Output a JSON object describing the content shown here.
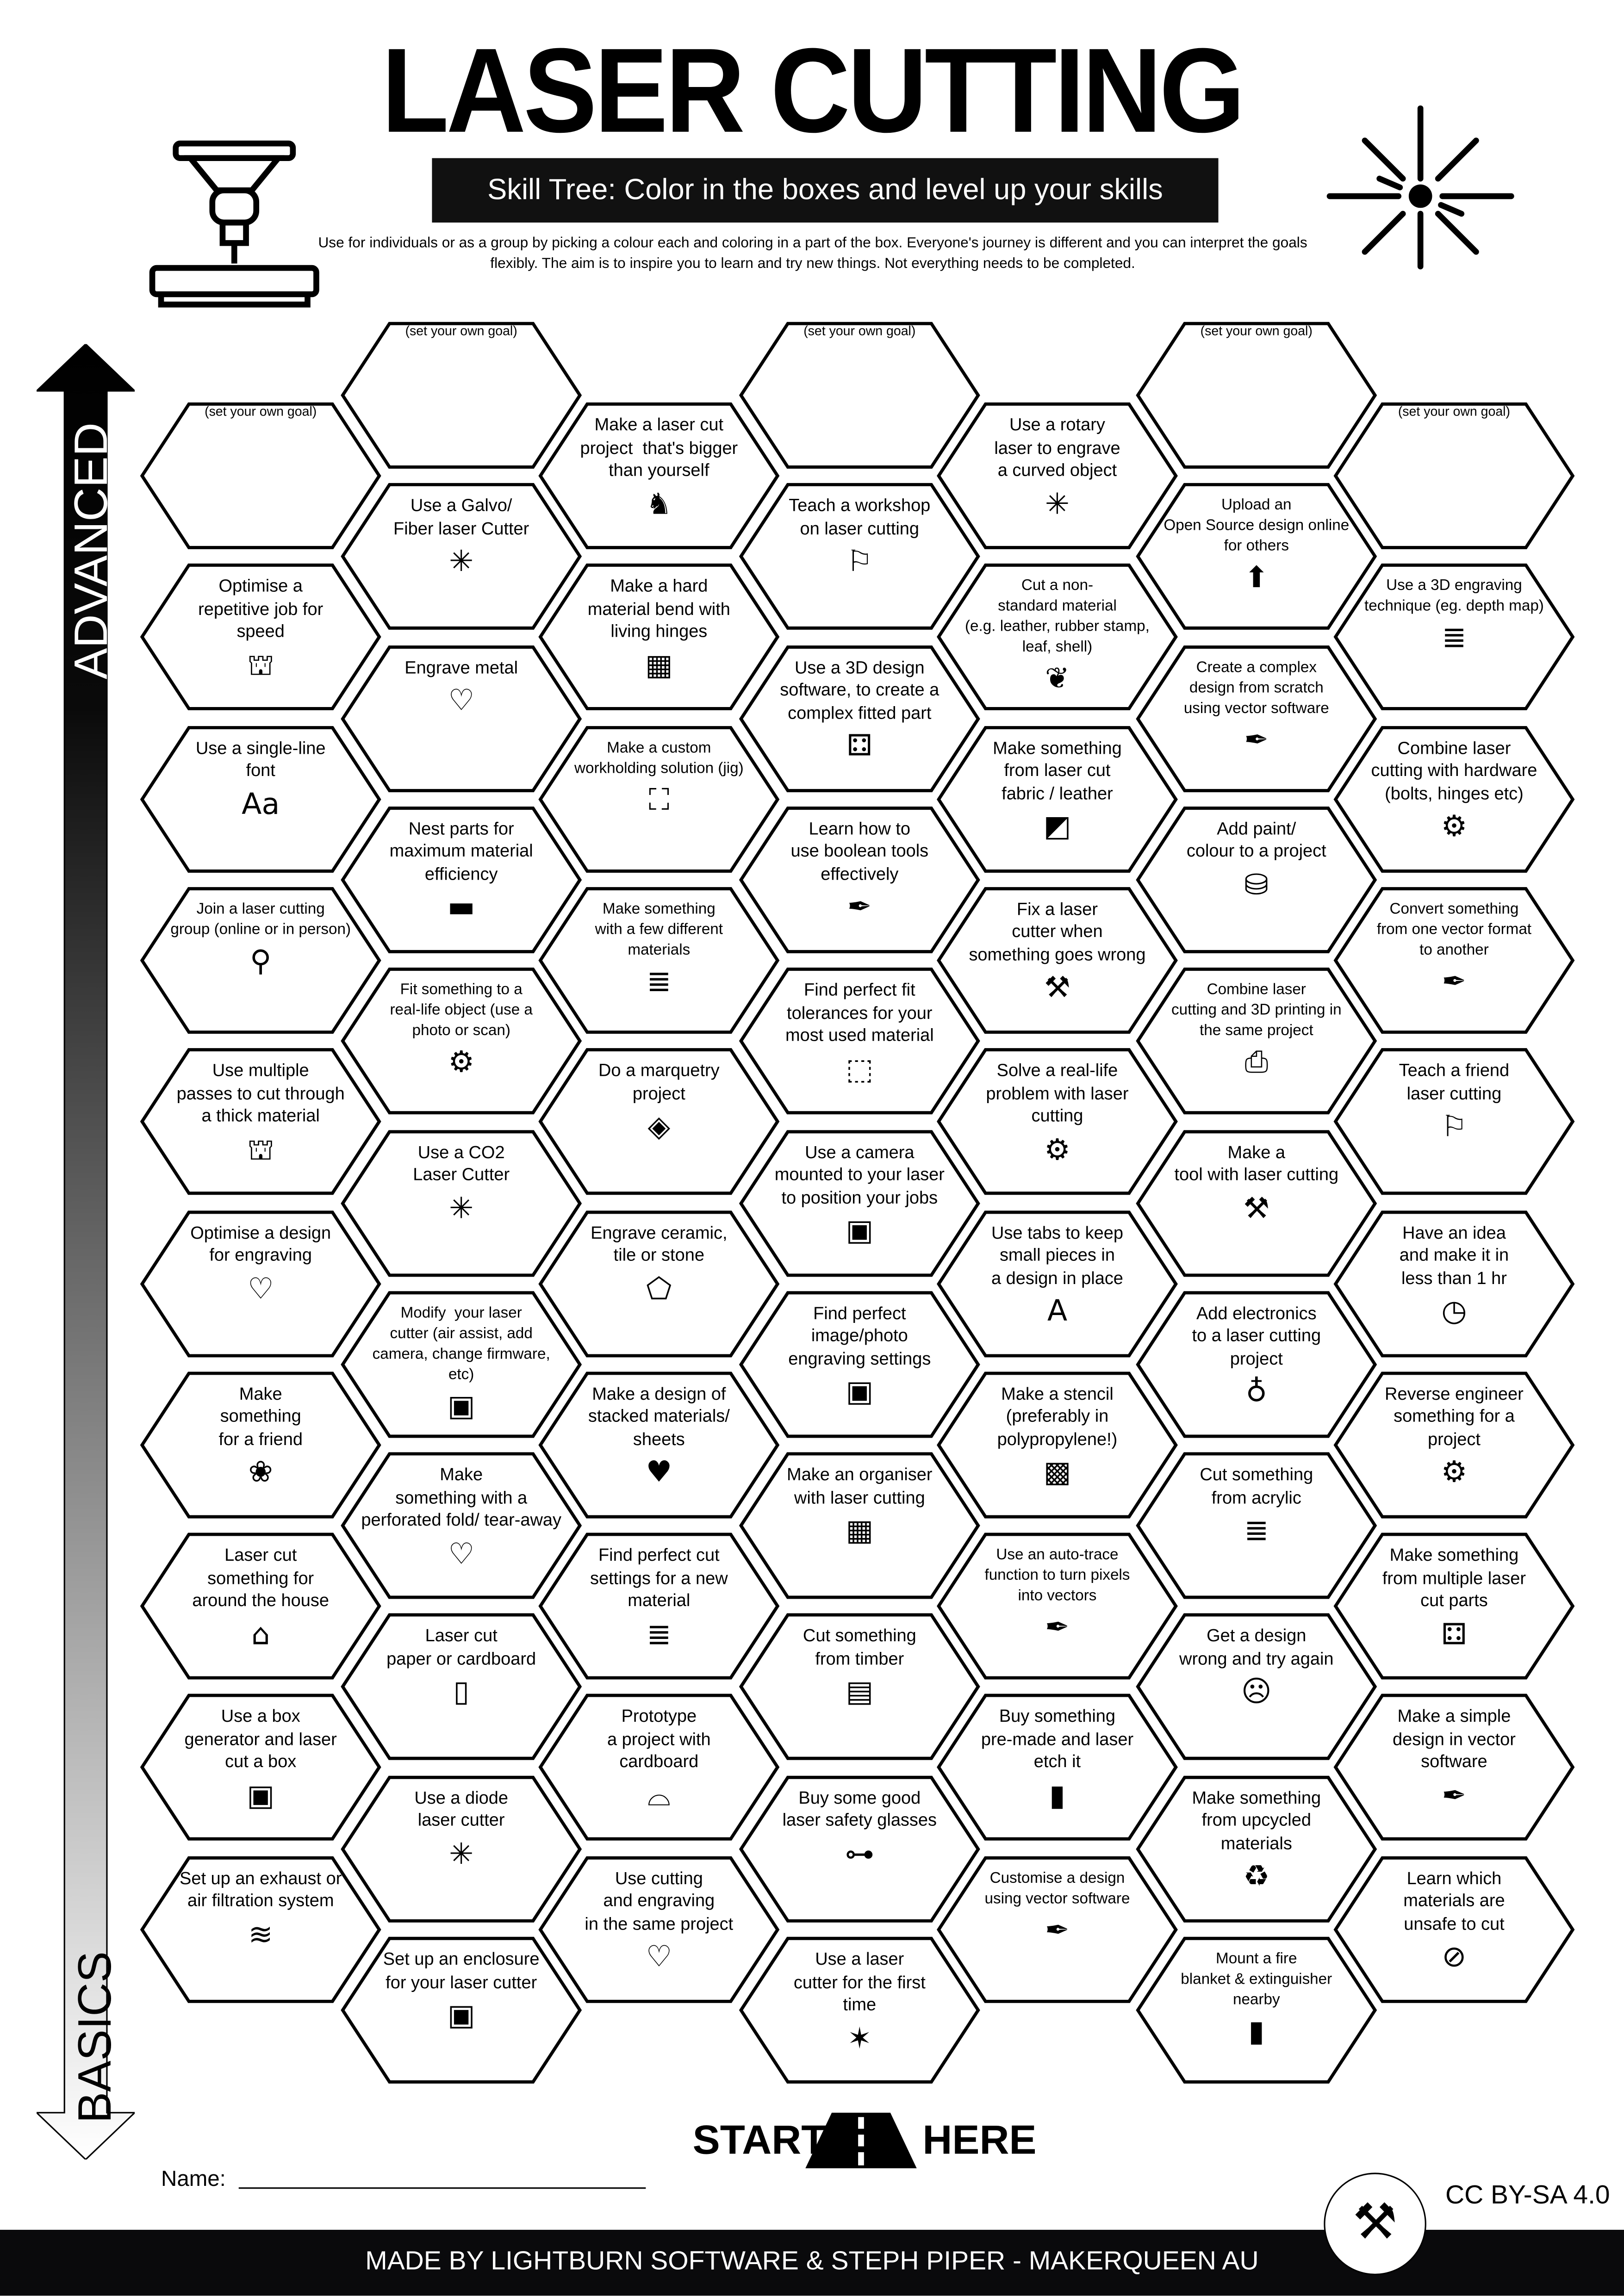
{
  "header": {
    "title": "LASER CUTTING",
    "subtitle": "Skill Tree:  Color in the boxes and level up your skills",
    "description": "Use for individuals or as a group by picking a colour each and coloring in a part of the box.  Everyone's journey is different and you can interpret the goals flexibly.  The aim is to inspire you to learn and try new things. Not everything needs to be completed.",
    "left_icon": "laser-machine-icon",
    "right_icon": "laser-burst-icon"
  },
  "axis": {
    "top_label": "ADVANCED",
    "bottom_label": "BASICS",
    "colors": [
      "#000000",
      "#ffffff"
    ]
  },
  "goal_label": "(set your own goal)",
  "columns": [
    {
      "items": [
        {
          "text": "",
          "goal": true
        },
        {
          "text": "Optimise a\nrepetitive job for\nspeed",
          "icon": "laser-machine"
        },
        {
          "text": "Use a single-line\nfont",
          "icon": "font"
        },
        {
          "text": "Join a laser cutting\ngroup (online or in person)",
          "icon": "location-pin",
          "small": true
        },
        {
          "text": "Use multiple\npasses to cut through\na thick material",
          "icon": "laser-machine"
        },
        {
          "text": "Optimise a design\nfor engraving",
          "icon": "heart-laser"
        },
        {
          "text": "Make\nsomething\nfor a friend",
          "icon": "gift-bow"
        },
        {
          "text": "Laser cut\nsomething for\naround the house",
          "icon": "house"
        },
        {
          "text": "Use a box\ngenerator and laser\ncut a box",
          "icon": "box"
        },
        {
          "text": "Set up an exhaust or\nair filtration system",
          "icon": "wind"
        }
      ]
    },
    {
      "items": [
        {
          "text": "",
          "goal": true
        },
        {
          "text": "Use a Galvo/\nFiber laser Cutter",
          "icon": "laser-burst"
        },
        {
          "text": "Engrave metal",
          "icon": "heart-laser"
        },
        {
          "text": "Nest parts for\nmaximum material\nefficiency",
          "icon": "nested-parts"
        },
        {
          "text": "Fit something to a\nreal-life object (use a\nphoto or scan)",
          "icon": "gear-hand",
          "small": true
        },
        {
          "text": "Use a CO2\nLaser Cutter",
          "icon": "laser-burst"
        },
        {
          "text": "Modify  your laser\ncutter (air assist, add\ncamera, change firmware,\netc)",
          "icon": "camera",
          "small": true
        },
        {
          "text": "Make\nsomething with a\nperforated fold/ tear-away",
          "icon": "perforated-heart"
        },
        {
          "text": "Laser cut\npaper or cardboard",
          "icon": "paper"
        },
        {
          "text": "Use a diode\nlaser cutter",
          "icon": "laser-burst"
        },
        {
          "text": "Set up an enclosure\nfor your laser cutter",
          "icon": "enclosure"
        }
      ]
    },
    {
      "items": [
        {
          "text": "Make a laser cut\nproject  that's bigger\nthan yourself",
          "icon": "elephant"
        },
        {
          "text": "Make a hard\nmaterial bend with\nliving hinges",
          "icon": "living-hinge"
        },
        {
          "text": "Make a custom\nworkholding solution (jig)",
          "icon": "jig-frame",
          "small": true
        },
        {
          "text": "Make something\nwith a few different\nmaterials",
          "icon": "layers",
          "small": true
        },
        {
          "text": "Do a marquetry\nproject",
          "icon": "marquetry"
        },
        {
          "text": "Engrave ceramic,\ntile or stone",
          "icon": "stone"
        },
        {
          "text": "Make a design of\nstacked materials/\nsheets",
          "icon": "stacked-heart"
        },
        {
          "text": "Find perfect cut\nsettings for a new\nmaterial",
          "icon": "layers"
        },
        {
          "text": "Prototype\na project with\ncardboard",
          "icon": "cardboard"
        },
        {
          "text": "Use cutting\nand engraving\nin the same project",
          "icon": "heart-laser"
        }
      ]
    },
    {
      "items": [
        {
          "text": "",
          "goal": true
        },
        {
          "text": "Teach a workshop\non laser cutting",
          "icon": "teacher"
        },
        {
          "text": "Use a 3D design\nsoftware, to create a\ncomplex fitted part",
          "icon": "fitted-part"
        },
        {
          "text": "Learn how to\nuse boolean tools\neffectively",
          "icon": "pen-tool"
        },
        {
          "text": "Find perfect fit\ntolerances for your\nmost used material",
          "icon": "cube-measure"
        },
        {
          "text": "Use a camera\nmounted to your laser\nto position your jobs",
          "icon": "camera"
        },
        {
          "text": "Find perfect\nimage/photo\nengraving settings",
          "icon": "portrait"
        },
        {
          "text": "Make an organiser\nwith laser cutting",
          "icon": "organiser"
        },
        {
          "text": "Cut something\nfrom timber",
          "icon": "timber"
        },
        {
          "text": "Buy some good\nlaser safety glasses",
          "icon": "safety-glasses"
        },
        {
          "text": "Use a laser\ncutter for the first\ntime",
          "icon": "party-popper"
        }
      ]
    },
    {
      "items": [
        {
          "text": "Use a rotary\nlaser to engrave\na curved object",
          "icon": "laser-burst"
        },
        {
          "text": "Cut a non-\nstandard material\n(e.g. leather, rubber stamp,\nleaf, shell)",
          "icon": "leaf",
          "small": true
        },
        {
          "text": "Make something\nfrom laser cut\nfabric / leather",
          "icon": "fabric"
        },
        {
          "text": "Fix a laser\ncutter when\nsomething goes wrong",
          "icon": "tools"
        },
        {
          "text": "Solve a real-life\nproblem with laser\ncutting",
          "icon": "gear-hand"
        },
        {
          "text": "Use tabs to keep\nsmall pieces in\na design in place",
          "icon": "letter-a"
        },
        {
          "text": "Make a stencil\n(preferably in\npolypropylene!)",
          "icon": "stencil"
        },
        {
          "text": "Use an auto-trace\nfunction to turn pixels\ninto vectors",
          "icon": "pen-tool",
          "small": true
        },
        {
          "text": "Buy something\npre-made and laser\netch it",
          "icon": "knife-board"
        },
        {
          "text": "Customise a design\nusing vector software",
          "icon": "pen-tool",
          "small": true
        }
      ]
    },
    {
      "items": [
        {
          "text": "",
          "goal": true
        },
        {
          "text": "Upload an\nOpen Source design online\nfor others",
          "icon": "upload",
          "small": true
        },
        {
          "text": "Create a complex\ndesign from scratch\nusing vector software",
          "icon": "pen-tool",
          "small": true
        },
        {
          "text": "Add paint/\ncolour to a project",
          "icon": "paint-can"
        },
        {
          "text": "Combine laser\ncutting and 3D printing in\nthe same project",
          "icon": "printer-laser",
          "small": true
        },
        {
          "text": "Make a\ntool with laser cutting",
          "icon": "tools"
        },
        {
          "text": "Add electronics\nto a laser cutting\nproject",
          "icon": "led"
        },
        {
          "text": "Cut something\nfrom acrylic",
          "icon": "layers"
        },
        {
          "text": "Get a design\nwrong and try again",
          "icon": "facepalm"
        },
        {
          "text": "Make something\nfrom upcycled\nmaterials",
          "icon": "recycle"
        },
        {
          "text": "Mount a fire\nblanket & extinguisher\nnearby",
          "icon": "extinguisher",
          "small": true
        }
      ]
    },
    {
      "items": [
        {
          "text": "",
          "goal": true
        },
        {
          "text": "Use a 3D engraving\ntechnique (eg. depth map)",
          "icon": "layers",
          "small": true
        },
        {
          "text": "Combine laser\ncutting with hardware\n(bolts, hinges etc)",
          "icon": "hardware"
        },
        {
          "text": "Convert something\nfrom one vector format\nto another",
          "icon": "pen-tool",
          "small": true
        },
        {
          "text": "Teach a friend\nlaser cutting",
          "icon": "teacher"
        },
        {
          "text": "Have an idea\nand make it in\nless than 1 hr",
          "icon": "clock"
        },
        {
          "text": "Reverse engineer\nsomething for a\nproject",
          "icon": "gear-hand"
        },
        {
          "text": "Make something\nfrom multiple laser\ncut parts",
          "icon": "fitted-part"
        },
        {
          "text": "Make a simple\ndesign in vector\nsoftware",
          "icon": "pen-tool"
        },
        {
          "text": "Learn which\nmaterials are\nunsafe to cut",
          "icon": "no-symbol"
        }
      ]
    }
  ],
  "start": {
    "left": "START",
    "right": "HERE",
    "icon": "road-icon"
  },
  "name_label": "Name:",
  "license": "CC BY-SA 4.0",
  "logo": "makerqueen-tools-logo",
  "footer": "MADE BY LIGHTBURN SOFTWARE & STEPH PIPER  -  MAKERQUEEN AU"
}
